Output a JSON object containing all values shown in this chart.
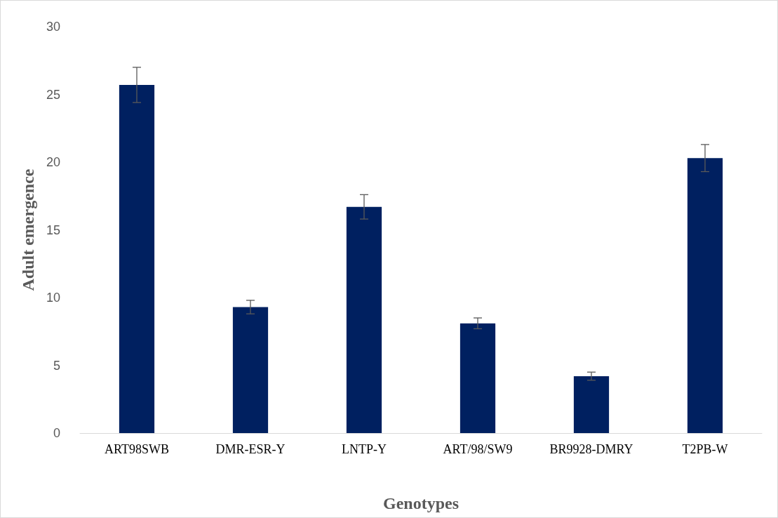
{
  "chart_data": {
    "type": "bar",
    "xlabel": "Genotypes",
    "ylabel": "Adult emergence",
    "categories": [
      "ART98SWB",
      "DMR-ESR-Y",
      "LNTP-Y",
      "ART/98/SW9",
      "BR9928-DMRY",
      "T2PB-W"
    ],
    "values": [
      25.7,
      9.3,
      16.7,
      8.1,
      4.2,
      20.3
    ],
    "errors": [
      1.3,
      0.5,
      0.9,
      0.4,
      0.3,
      1.0
    ],
    "color": "#002060",
    "ylim": [
      0,
      30
    ],
    "yticks": [
      0,
      5,
      10,
      15,
      20,
      25,
      30
    ],
    "grid": false
  }
}
